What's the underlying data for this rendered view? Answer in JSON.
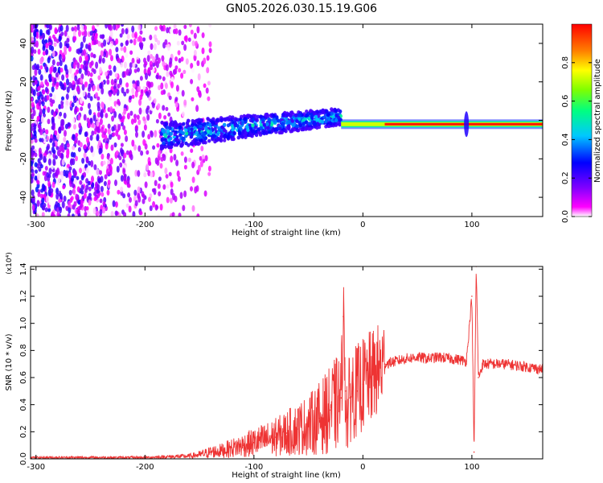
{
  "page_title": "GN05.2026.030.15.19.G06",
  "chart_data": [
    {
      "type": "heatmap",
      "xlabel": "Height of straight line (km)",
      "ylabel": "Frequency (Hz)",
      "xlim": [
        -305,
        165
      ],
      "ylim": [
        -50,
        50
      ],
      "xticks": [
        -300,
        -200,
        -100,
        0,
        100
      ],
      "yticks": [
        -40,
        -20,
        0,
        20,
        40
      ],
      "grid": false,
      "colorbar": {
        "label": "Normalized spectral amplitude",
        "range": [
          0,
          1
        ],
        "ticks": [
          0.0,
          0.2,
          0.4,
          0.6,
          0.8
        ],
        "colormap": [
          "#ffffff",
          "#ff00ff",
          "#8000ff",
          "#0000ff",
          "#00c8ff",
          "#00ff80",
          "#80ff00",
          "#ffff00",
          "#ff8000",
          "#ff0000"
        ]
      },
      "features": [
        {
          "description": "diffuse purple noise",
          "x_range": [
            -305,
            -140
          ],
          "freq_range": [
            -50,
            50
          ],
          "amplitude": 0.15
        },
        {
          "description": "converging doppler trace",
          "x_range": [
            -185,
            -20
          ],
          "center_freq": [
            -8,
            2
          ],
          "amplitude": 0.4
        },
        {
          "description": "strong carrier line",
          "x_range": [
            -20,
            165
          ],
          "center_freq": [
            -2,
            -2
          ],
          "amplitude": 0.95
        }
      ]
    },
    {
      "type": "line",
      "xlabel": "Height of straight line (km)",
      "ylabel": "SNR (10 * v/v)",
      "yscale_label": "(x10⁴)",
      "xlim": [
        -305,
        165
      ],
      "ylim": [
        0,
        1.42
      ],
      "xticks": [
        -300,
        -200,
        -100,
        0,
        100
      ],
      "yticks": [
        0.0,
        0.2,
        0.4,
        0.6,
        0.8,
        1.0,
        1.2,
        1.4
      ],
      "grid": false,
      "series": [
        {
          "color": "#ee3333",
          "x": [
            -305,
            -280,
            -250,
            -220,
            -200,
            -180,
            -160,
            -150,
            -140,
            -130,
            -120,
            -110,
            -100,
            -90,
            -80,
            -70,
            -60,
            -50,
            -40,
            -30,
            -25,
            -20,
            -18,
            -16,
            -14,
            -12,
            -10,
            -5,
            0,
            10,
            20,
            30,
            40,
            50,
            60,
            70,
            80,
            90,
            95,
            100,
            102,
            104,
            106,
            110,
            120,
            130,
            140,
            150,
            165
          ],
          "values": [
            0.01,
            0.01,
            0.01,
            0.01,
            0.01,
            0.015,
            0.02,
            0.03,
            0.05,
            0.06,
            0.08,
            0.1,
            0.12,
            0.14,
            0.16,
            0.19,
            0.22,
            0.25,
            0.3,
            0.36,
            0.4,
            0.45,
            1.05,
            0.5,
            0.3,
            0.45,
            0.5,
            0.5,
            0.55,
            0.62,
            0.7,
            0.72,
            0.74,
            0.75,
            0.74,
            0.75,
            0.74,
            0.73,
            0.72,
            1.2,
            0.05,
            1.42,
            0.6,
            0.7,
            0.7,
            0.7,
            0.69,
            0.68,
            0.66
          ]
        }
      ]
    }
  ]
}
